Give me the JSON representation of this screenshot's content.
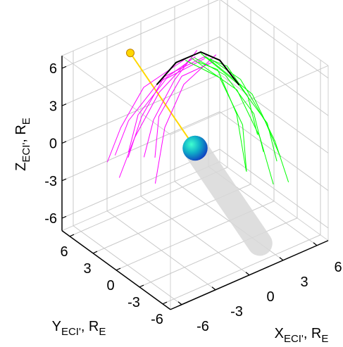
{
  "chart_data": {
    "type": "line3d",
    "xlim": [
      -7,
      7
    ],
    "ylim": [
      -7,
      7
    ],
    "zlim": [
      -7,
      7
    ],
    "xticks": [
      -6,
      -3,
      0,
      3,
      6
    ],
    "yticks": [
      -6,
      -3,
      0,
      3,
      6
    ],
    "zticks": [
      -6,
      -3,
      0,
      3,
      6
    ],
    "xlabel": [
      "X",
      "ECI'",
      ", R",
      "E"
    ],
    "ylabel": [
      "Y",
      "ECI'",
      ", R",
      "E"
    ],
    "zlabel": [
      "Z",
      "ECI'",
      ", R",
      "E"
    ],
    "grid": true,
    "series": [
      {
        "color": "#ff00ff",
        "x": [
          0,
          -2,
          -3.5,
          -4
        ],
        "y": [
          0,
          2,
          3.5,
          4.5
        ],
        "z": [
          7.3,
          5,
          2,
          -1
        ]
      },
      {
        "color": "#ff00ff",
        "x": [
          0.5,
          -1.5,
          -3,
          -3.5
        ],
        "y": [
          -0.5,
          1.5,
          3,
          3.5
        ],
        "z": [
          7.2,
          5.5,
          2.5,
          -0.5
        ]
      },
      {
        "color": "#ff00ff",
        "x": [
          0,
          -2.5,
          -4,
          -5
        ],
        "y": [
          0.5,
          1,
          2,
          2.5
        ],
        "z": [
          7,
          5,
          1.5,
          -1.5
        ]
      },
      {
        "color": "#ff00ff",
        "x": [
          1,
          -1,
          -2,
          -2.5
        ],
        "y": [
          0,
          2.5,
          4,
          5
        ],
        "z": [
          7,
          5,
          1.5,
          -2
        ]
      },
      {
        "color": "#ff00ff",
        "x": [
          0.5,
          -1.5,
          -3,
          -3.5
        ],
        "y": [
          0.5,
          0.5,
          1,
          1.5
        ],
        "z": [
          7.4,
          5.8,
          3,
          0
        ]
      },
      {
        "color": "#ff00ff",
        "x": [
          1,
          -0.5,
          -1.5,
          -1.5
        ],
        "y": [
          -1,
          1,
          2.5,
          3
        ],
        "z": [
          7,
          5.5,
          2,
          -1.5
        ]
      },
      {
        "color": "#ff00ff",
        "x": [
          0,
          -2.5,
          -3.5,
          -4
        ],
        "y": [
          1,
          3,
          4.5,
          5.5
        ],
        "z": [
          6.8,
          4.5,
          1,
          -2
        ]
      },
      {
        "color": "#ff00ff",
        "x": [
          1.5,
          -1,
          -2,
          -2.5
        ],
        "y": [
          -0.5,
          0,
          1,
          1.5
        ],
        "z": [
          7.1,
          5.5,
          2,
          -2.5
        ]
      },
      {
        "color": "#00ff00",
        "x": [
          0.5,
          2.5,
          4,
          4.5
        ],
        "y": [
          0,
          -2,
          -3.5,
          -4
        ],
        "z": [
          7.4,
          5,
          2,
          -1
        ]
      },
      {
        "color": "#00ff00",
        "x": [
          0,
          2,
          3.5,
          4
        ],
        "y": [
          0,
          -1,
          -2.5,
          -3
        ],
        "z": [
          7.2,
          5.5,
          2.5,
          -0.5
        ]
      },
      {
        "color": "#00ff00",
        "x": [
          1,
          3,
          4.5,
          5.5
        ],
        "y": [
          -0.5,
          -1.5,
          -2.5,
          -3
        ],
        "z": [
          7,
          5,
          1.5,
          -1.5
        ]
      },
      {
        "color": "#00ff00",
        "x": [
          0,
          2,
          3,
          3.5
        ],
        "y": [
          0.5,
          -2.5,
          -4,
          -5
        ],
        "z": [
          7,
          5,
          1.5,
          -2
        ]
      },
      {
        "color": "#00ff00",
        "x": [
          0.5,
          2.5,
          4,
          4.5
        ],
        "y": [
          -0.5,
          -0.5,
          -1,
          -1.5
        ],
        "z": [
          7.3,
          5.8,
          3,
          0
        ]
      },
      {
        "color": "#00ff00",
        "x": [
          -0.5,
          1.5,
          2.5,
          2.5
        ],
        "y": [
          0.5,
          -1,
          -2.5,
          -3
        ],
        "z": [
          7,
          5.5,
          2,
          -1.5
        ]
      },
      {
        "color": "#00ff00",
        "x": [
          1,
          3,
          4,
          4.5
        ],
        "y": [
          0,
          -3,
          -4.5,
          -5.5
        ],
        "z": [
          6.9,
          4.5,
          1,
          -2
        ]
      },
      {
        "color": "#00ff00",
        "x": [
          0,
          2,
          3,
          3.5
        ],
        "y": [
          -0.5,
          0,
          -1,
          -1.5
        ],
        "z": [
          7.1,
          5.5,
          2,
          -2.5
        ]
      }
    ],
    "reference_line": {
      "color": "#000000",
      "x": [
        -2,
        -1,
        0.5,
        1.5,
        2.5
      ],
      "y": [
        2,
        1,
        0,
        -1,
        -2
      ],
      "z": [
        5,
        6.8,
        7.5,
        6.9,
        5
      ]
    },
    "sun": {
      "color": "#ffd700",
      "x": -3,
      "y": 4,
      "z": 7
    },
    "earth": {
      "x": 0,
      "y": 0,
      "z": 0,
      "radius": 1
    },
    "shadow": {
      "x": [
        0,
        3
      ],
      "y": [
        0,
        -4
      ],
      "z": [
        0,
        -7
      ],
      "radius": 1
    }
  }
}
